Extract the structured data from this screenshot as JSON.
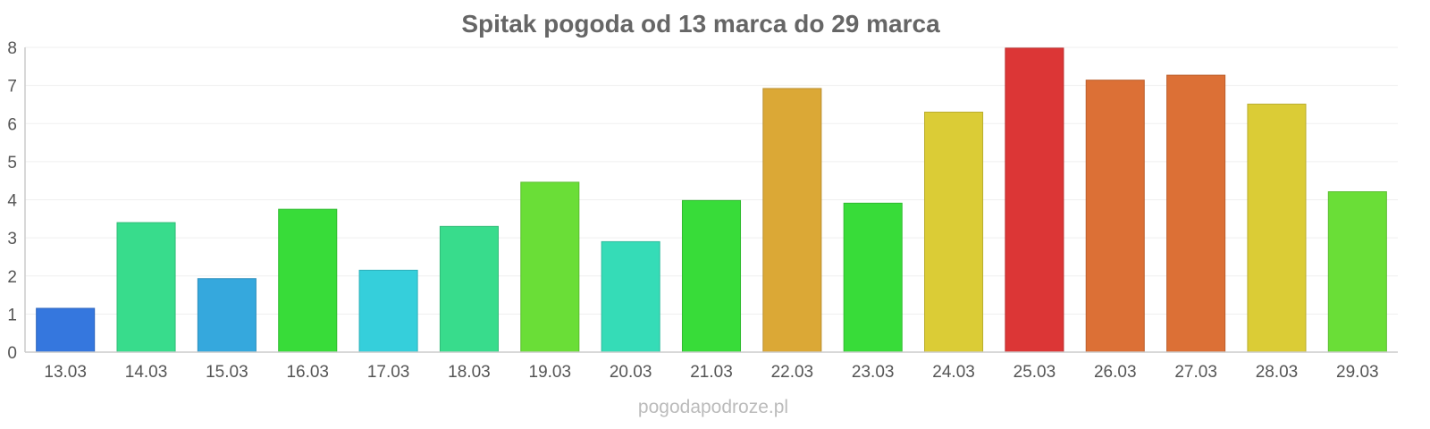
{
  "chart_data": {
    "type": "bar",
    "title": "Spitak pogoda od 13 marca do 29 marca",
    "categories": [
      "13.03",
      "14.03",
      "15.03",
      "16.03",
      "17.03",
      "18.03",
      "19.03",
      "20.03",
      "21.03",
      "22.03",
      "23.03",
      "24.03",
      "25.03",
      "26.03",
      "27.03",
      "28.03",
      "29.03"
    ],
    "values": [
      1.15,
      3.4,
      1.93,
      3.75,
      2.15,
      3.3,
      4.46,
      2.9,
      3.98,
      6.92,
      3.91,
      6.3,
      7.98,
      7.14,
      7.27,
      6.51,
      4.21
    ],
    "colors": [
      "#3577de",
      "#38dc8c",
      "#35a8dd",
      "#38dc39",
      "#35cfdb",
      "#38dc8c",
      "#6ade37",
      "#35dcb7",
      "#38dc39",
      "#dba836",
      "#38dc39",
      "#dbcc36",
      "#dc3636",
      "#dc7036",
      "#dc7036",
      "#dbcc36",
      "#6ade37"
    ],
    "yticks": [
      "0",
      "1",
      "2",
      "3",
      "4",
      "5",
      "6",
      "7",
      "8"
    ],
    "ylim": [
      0,
      8
    ],
    "xlabel": "",
    "ylabel": "",
    "grid": true,
    "legend": "none"
  },
  "watermark": "pogodapodroze.pl"
}
